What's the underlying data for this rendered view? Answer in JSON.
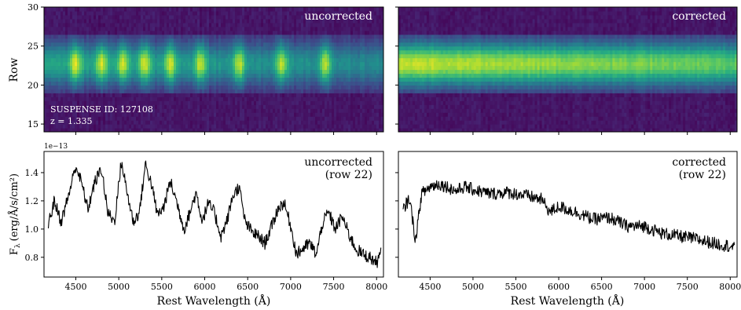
{
  "figure": {
    "exponent_label": "1e−13",
    "ylabel_top": "Row",
    "ylabel_bottom": "F",
    "ylabel_bottom_sub": "λ",
    "ylabel_bottom_units": "(erg/Å/s/cm²)",
    "xlabel": "Rest Wavelength (Å)",
    "object_id": "SUSPENSE ID: 127108",
    "redshift": "z = 1.335"
  },
  "chart_data": [
    {
      "type": "heatmap",
      "panel": "top-left",
      "label": "uncorrected",
      "ylim": [
        14,
        30
      ],
      "yticks": [
        15,
        20,
        25,
        30
      ],
      "xlim": [
        4130,
        8080
      ],
      "xticks": [
        4500,
        5000,
        5500,
        6000,
        6500,
        7000,
        7500,
        8000
      ],
      "trace_center_row": 22.5,
      "colormap": "viridis",
      "bright_knots_x": [
        4500,
        4800,
        5050,
        5300,
        5600,
        5950,
        6400,
        6900,
        7400
      ]
    },
    {
      "type": "heatmap",
      "panel": "top-right",
      "label": "corrected",
      "ylim": [
        14,
        30
      ],
      "yticks": [
        15,
        20,
        25,
        30
      ],
      "xlim": [
        4130,
        8080
      ],
      "xticks": [
        4500,
        5000,
        5500,
        6000,
        6500,
        7000,
        7500,
        8000
      ],
      "trace_center_row": 22.5,
      "colormap": "viridis"
    },
    {
      "type": "line",
      "panel": "bottom-left",
      "label_line1": "uncorrected",
      "label_line2": "(row 22)",
      "xlim": [
        4130,
        8080
      ],
      "ylim": [
        0.66,
        1.55
      ],
      "yticks": [
        0.8,
        1.0,
        1.2,
        1.4
      ],
      "ytick_labels": [
        "0.8",
        "1.0",
        "1.2",
        "1.4"
      ],
      "xticks": [
        4500,
        5000,
        5500,
        6000,
        6500,
        7000,
        7500,
        8000
      ],
      "xtick_labels": [
        "4500",
        "5000",
        "5500",
        "6000",
        "6500",
        "7000",
        "7500",
        "8000"
      ],
      "x": [
        4180,
        4250,
        4330,
        4420,
        4500,
        4570,
        4640,
        4720,
        4800,
        4870,
        4950,
        5030,
        5100,
        5170,
        5240,
        5310,
        5380,
        5450,
        5520,
        5600,
        5680,
        5760,
        5830,
        5900,
        5970,
        6040,
        6110,
        6190,
        6260,
        6330,
        6400,
        6470,
        6550,
        6620,
        6700,
        6780,
        6850,
        6920,
        6990,
        7070,
        7140,
        7220,
        7300,
        7370,
        7440,
        7520,
        7600,
        7680,
        7760,
        7840,
        7920,
        8000,
        8050
      ],
      "y": [
        1.03,
        1.2,
        1.05,
        1.25,
        1.45,
        1.32,
        1.14,
        1.33,
        1.43,
        1.12,
        1.05,
        1.48,
        1.25,
        1.05,
        1.12,
        1.46,
        1.32,
        1.1,
        1.15,
        1.34,
        1.18,
        1.0,
        1.12,
        1.26,
        1.06,
        1.18,
        1.12,
        0.95,
        1.06,
        1.24,
        1.3,
        1.05,
        0.98,
        0.95,
        0.9,
        1.02,
        1.14,
        1.19,
        1.05,
        0.82,
        0.86,
        0.9,
        0.82,
        1.04,
        1.12,
        1.0,
        1.09,
        0.96,
        0.86,
        0.82,
        0.8,
        0.76,
        0.83
      ],
      "noise_amplitude": 0.045
    },
    {
      "type": "line",
      "panel": "bottom-right",
      "label_line1": "corrected",
      "label_line2": "(row 22)",
      "xlim": [
        4130,
        8080
      ],
      "ylim": [
        0.66,
        1.55
      ],
      "yticks": [
        0.8,
        1.0,
        1.2,
        1.4
      ],
      "xticks": [
        4500,
        5000,
        5500,
        6000,
        6500,
        7000,
        7500,
        8000
      ],
      "xtick_labels": [
        "4500",
        "5000",
        "5500",
        "6000",
        "6500",
        "7000",
        "7500",
        "8000"
      ],
      "x": [
        4180,
        4260,
        4330,
        4400,
        4500,
        4600,
        4700,
        4800,
        4900,
        5000,
        5200,
        5400,
        5600,
        5800,
        5900,
        6000,
        6200,
        6400,
        6600,
        6800,
        7000,
        7200,
        7400,
        7600,
        7800,
        8000,
        8050
      ],
      "y": [
        1.13,
        1.22,
        0.92,
        1.25,
        1.3,
        1.32,
        1.3,
        1.27,
        1.3,
        1.28,
        1.25,
        1.26,
        1.24,
        1.21,
        1.12,
        1.16,
        1.12,
        1.07,
        1.08,
        1.02,
        1.02,
        0.97,
        0.95,
        0.93,
        0.9,
        0.88,
        0.86
      ],
      "noise_amplitude": 0.045
    }
  ]
}
